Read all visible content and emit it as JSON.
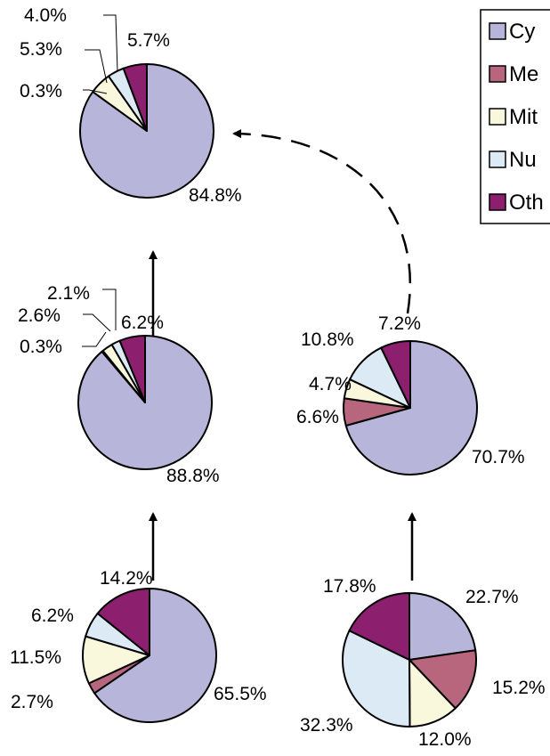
{
  "colors": {
    "cytoplasm": "#b7b6da",
    "membrane": "#b7667d",
    "mitochondria": "#f9f7dc",
    "nucleus": "#dceaf6",
    "other": "#8c1f6e"
  },
  "legend": {
    "items": [
      {
        "key": "cytoplasm",
        "label": "Cy"
      },
      {
        "key": "membrane",
        "label": "Me"
      },
      {
        "key": "mitochondria",
        "label": "Mit"
      },
      {
        "key": "nucleus",
        "label": "Nu"
      },
      {
        "key": "other",
        "label": "Oth"
      }
    ]
  },
  "chart_data": [
    {
      "type": "pie",
      "id": "top",
      "slices": [
        {
          "key": "cytoplasm",
          "value": 84.8,
          "label": "84.8%"
        },
        {
          "key": "membrane",
          "value": 0.0,
          "label": ""
        },
        {
          "key": "mitochondria",
          "value": 5.3,
          "label": "5.3%"
        },
        {
          "key": "nucleus",
          "value": 4.0,
          "label": "4.0%"
        },
        {
          "key": "other",
          "value": 5.7,
          "label": "5.7%"
        }
      ],
      "extra_labels": [
        "0.3%"
      ]
    },
    {
      "type": "pie",
      "id": "middle-left",
      "slices": [
        {
          "key": "cytoplasm",
          "value": 88.8,
          "label": "88.8%"
        },
        {
          "key": "membrane",
          "value": 0.3,
          "label": "0.3%"
        },
        {
          "key": "mitochondria",
          "value": 2.6,
          "label": "2.6%"
        },
        {
          "key": "nucleus",
          "value": 2.1,
          "label": "2.1%"
        },
        {
          "key": "other",
          "value": 6.2,
          "label": "6.2%"
        }
      ]
    },
    {
      "type": "pie",
      "id": "middle-right",
      "slices": [
        {
          "key": "cytoplasm",
          "value": 70.7,
          "label": "70.7%"
        },
        {
          "key": "membrane",
          "value": 6.6,
          "label": "6.6%"
        },
        {
          "key": "mitochondria",
          "value": 4.7,
          "label": "4.7%"
        },
        {
          "key": "nucleus",
          "value": 10.8,
          "label": "10.8%"
        },
        {
          "key": "other",
          "value": 7.2,
          "label": "7.2%"
        }
      ]
    },
    {
      "type": "pie",
      "id": "bottom-left",
      "slices": [
        {
          "key": "cytoplasm",
          "value": 65.5,
          "label": "65.5%"
        },
        {
          "key": "membrane",
          "value": 2.7,
          "label": "2.7%"
        },
        {
          "key": "mitochondria",
          "value": 11.5,
          "label": "11.5%"
        },
        {
          "key": "nucleus",
          "value": 6.2,
          "label": "6.2%"
        },
        {
          "key": "other",
          "value": 14.2,
          "label": "14.2%"
        }
      ]
    },
    {
      "type": "pie",
      "id": "bottom-right",
      "slices": [
        {
          "key": "cytoplasm",
          "value": 22.7,
          "label": "22.7%"
        },
        {
          "key": "membrane",
          "value": 15.2,
          "label": "15.2%"
        },
        {
          "key": "mitochondria",
          "value": 12.0,
          "label": "12.0%"
        },
        {
          "key": "nucleus",
          "value": 32.3,
          "label": "32.3%"
        },
        {
          "key": "other",
          "value": 17.8,
          "label": "17.8%"
        }
      ]
    }
  ]
}
